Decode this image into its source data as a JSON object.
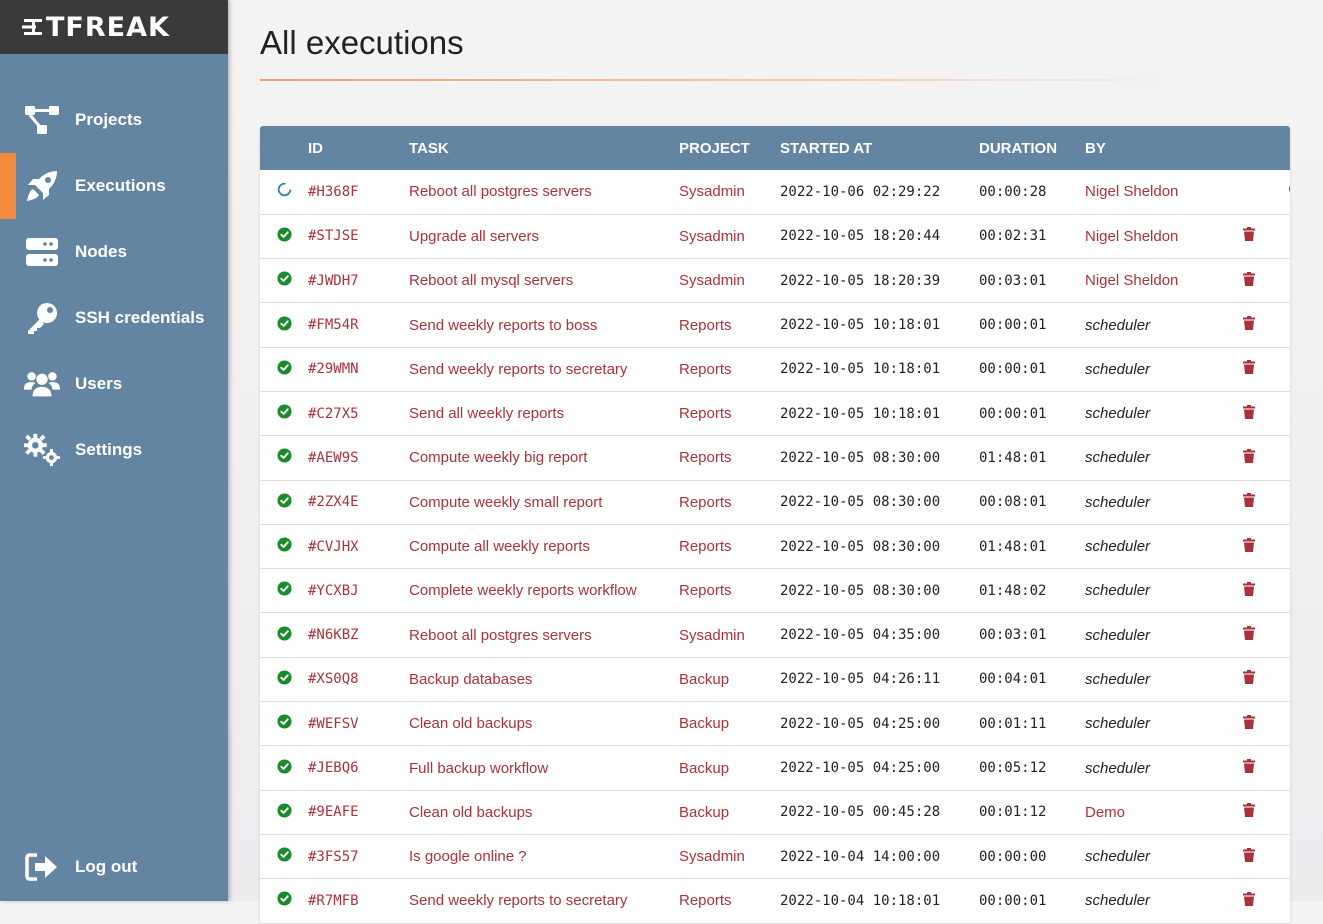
{
  "app": {
    "logo_text": "TFREAK"
  },
  "nav": [
    {
      "label": "Projects",
      "icon": "project-diagram-icon",
      "active": false
    },
    {
      "label": "Executions",
      "icon": "rocket-icon",
      "active": true
    },
    {
      "label": "Nodes",
      "icon": "server-icon",
      "active": false
    },
    {
      "label": "SSH credentials",
      "icon": "key-icon",
      "active": false
    },
    {
      "label": "Users",
      "icon": "users-icon",
      "active": false
    },
    {
      "label": "Settings",
      "icon": "cogs-icon",
      "active": false
    }
  ],
  "logout": {
    "label": "Log out",
    "icon": "sign-out-icon"
  },
  "page": {
    "title": "All executions"
  },
  "table": {
    "headers": {
      "id": "ID",
      "task": "TASK",
      "project": "PROJECT",
      "started": "STARTED AT",
      "duration": "DURATION",
      "by": "BY"
    },
    "rows": [
      {
        "status": "running",
        "id": "#H368F",
        "task": "Reboot all postgres servers",
        "project": "Sysadmin",
        "started": "2022-10-06 02:29:22",
        "duration": "00:00:28",
        "by": "Nigel Sheldon",
        "by_type": "user",
        "action": "kill"
      },
      {
        "status": "success",
        "id": "#STJSE",
        "task": "Upgrade all servers",
        "project": "Sysadmin",
        "started": "2022-10-05 18:20:44",
        "duration": "00:02:31",
        "by": "Nigel Sheldon",
        "by_type": "user",
        "action": "delete"
      },
      {
        "status": "success",
        "id": "#JWDH7",
        "task": "Reboot all mysql servers",
        "project": "Sysadmin",
        "started": "2022-10-05 18:20:39",
        "duration": "00:03:01",
        "by": "Nigel Sheldon",
        "by_type": "user",
        "action": "delete"
      },
      {
        "status": "success",
        "id": "#FM54R",
        "task": "Send weekly reports to boss",
        "project": "Reports",
        "started": "2022-10-05 10:18:01",
        "duration": "00:00:01",
        "by": "scheduler",
        "by_type": "scheduler",
        "action": "delete"
      },
      {
        "status": "success",
        "id": "#29WMN",
        "task": "Send weekly reports to secretary",
        "project": "Reports",
        "started": "2022-10-05 10:18:01",
        "duration": "00:00:01",
        "by": "scheduler",
        "by_type": "scheduler",
        "action": "delete"
      },
      {
        "status": "success",
        "id": "#C27X5",
        "task": "Send all weekly reports",
        "project": "Reports",
        "started": "2022-10-05 10:18:01",
        "duration": "00:00:01",
        "by": "scheduler",
        "by_type": "scheduler",
        "action": "delete"
      },
      {
        "status": "success",
        "id": "#AEW9S",
        "task": "Compute weekly big report",
        "project": "Reports",
        "started": "2022-10-05 08:30:00",
        "duration": "01:48:01",
        "by": "scheduler",
        "by_type": "scheduler",
        "action": "delete"
      },
      {
        "status": "success",
        "id": "#2ZX4E",
        "task": "Compute weekly small report",
        "project": "Reports",
        "started": "2022-10-05 08:30:00",
        "duration": "00:08:01",
        "by": "scheduler",
        "by_type": "scheduler",
        "action": "delete"
      },
      {
        "status": "success",
        "id": "#CVJHX",
        "task": "Compute all weekly reports",
        "project": "Reports",
        "started": "2022-10-05 08:30:00",
        "duration": "01:48:01",
        "by": "scheduler",
        "by_type": "scheduler",
        "action": "delete"
      },
      {
        "status": "success",
        "id": "#YCXBJ",
        "task": "Complete weekly reports workflow",
        "project": "Reports",
        "started": "2022-10-05 08:30:00",
        "duration": "01:48:02",
        "by": "scheduler",
        "by_type": "scheduler",
        "action": "delete"
      },
      {
        "status": "success",
        "id": "#N6KBZ",
        "task": "Reboot all postgres servers",
        "project": "Sysadmin",
        "started": "2022-10-05 04:35:00",
        "duration": "00:03:01",
        "by": "scheduler",
        "by_type": "scheduler",
        "action": "delete"
      },
      {
        "status": "success",
        "id": "#XS0Q8",
        "task": "Backup databases",
        "project": "Backup",
        "started": "2022-10-05 04:26:11",
        "duration": "00:04:01",
        "by": "scheduler",
        "by_type": "scheduler",
        "action": "delete"
      },
      {
        "status": "success",
        "id": "#WEFSV",
        "task": "Clean old backups",
        "project": "Backup",
        "started": "2022-10-05 04:25:00",
        "duration": "00:01:11",
        "by": "scheduler",
        "by_type": "scheduler",
        "action": "delete"
      },
      {
        "status": "success",
        "id": "#JEBQ6",
        "task": "Full backup workflow",
        "project": "Backup",
        "started": "2022-10-05 04:25:00",
        "duration": "00:05:12",
        "by": "scheduler",
        "by_type": "scheduler",
        "action": "delete"
      },
      {
        "status": "success",
        "id": "#9EAFE",
        "task": "Clean old backups",
        "project": "Backup",
        "started": "2022-10-05 00:45:28",
        "duration": "00:01:12",
        "by": "Demo",
        "by_type": "user",
        "action": "delete"
      },
      {
        "status": "success",
        "id": "#3FS57",
        "task": "Is google online ?",
        "project": "Sysadmin",
        "started": "2022-10-04 14:00:00",
        "duration": "00:00:00",
        "by": "scheduler",
        "by_type": "scheduler",
        "action": "delete"
      },
      {
        "status": "success",
        "id": "#R7MFB",
        "task": "Send weekly reports to secretary",
        "project": "Reports",
        "started": "2022-10-04 10:18:01",
        "duration": "00:00:01",
        "by": "scheduler",
        "by_type": "scheduler",
        "action": "delete"
      }
    ]
  },
  "colors": {
    "sidebar": "#6485a2",
    "logo_bar": "#3a3a3a",
    "accent": "#f28b3c",
    "link": "#a8333d",
    "success": "#1a8a2a",
    "running": "#2a7fa8",
    "delete": "#a8333d"
  }
}
